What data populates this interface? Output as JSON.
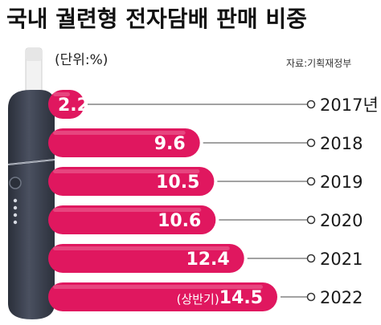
{
  "header": {
    "title": "국내 궐련형 전자담배 판매 비중",
    "unit": "(단위:%)",
    "source": "자료:기획재정부"
  },
  "colors": {
    "bar": "#e0175f",
    "bar_light": "#f07fa7",
    "device_body": "#3d4351",
    "device_stick": "#eeeeee",
    "text_dark": "#1a1a1a"
  },
  "chart_data": {
    "type": "bar",
    "orientation": "horizontal",
    "categories": [
      "2017년",
      "2018",
      "2019",
      "2020",
      "2021",
      "2022"
    ],
    "values": [
      2.2,
      9.6,
      10.5,
      10.6,
      12.4,
      14.5
    ],
    "value_labels": [
      "2.2",
      "9.6",
      "10.5",
      "10.6",
      "12.4",
      "(상반기)14.5"
    ],
    "title": "국내 궐련형 전자담배 판매 비중",
    "unit": "(단위:%)",
    "xlim": [
      0,
      14.5
    ],
    "grid": false,
    "legend": "none"
  }
}
